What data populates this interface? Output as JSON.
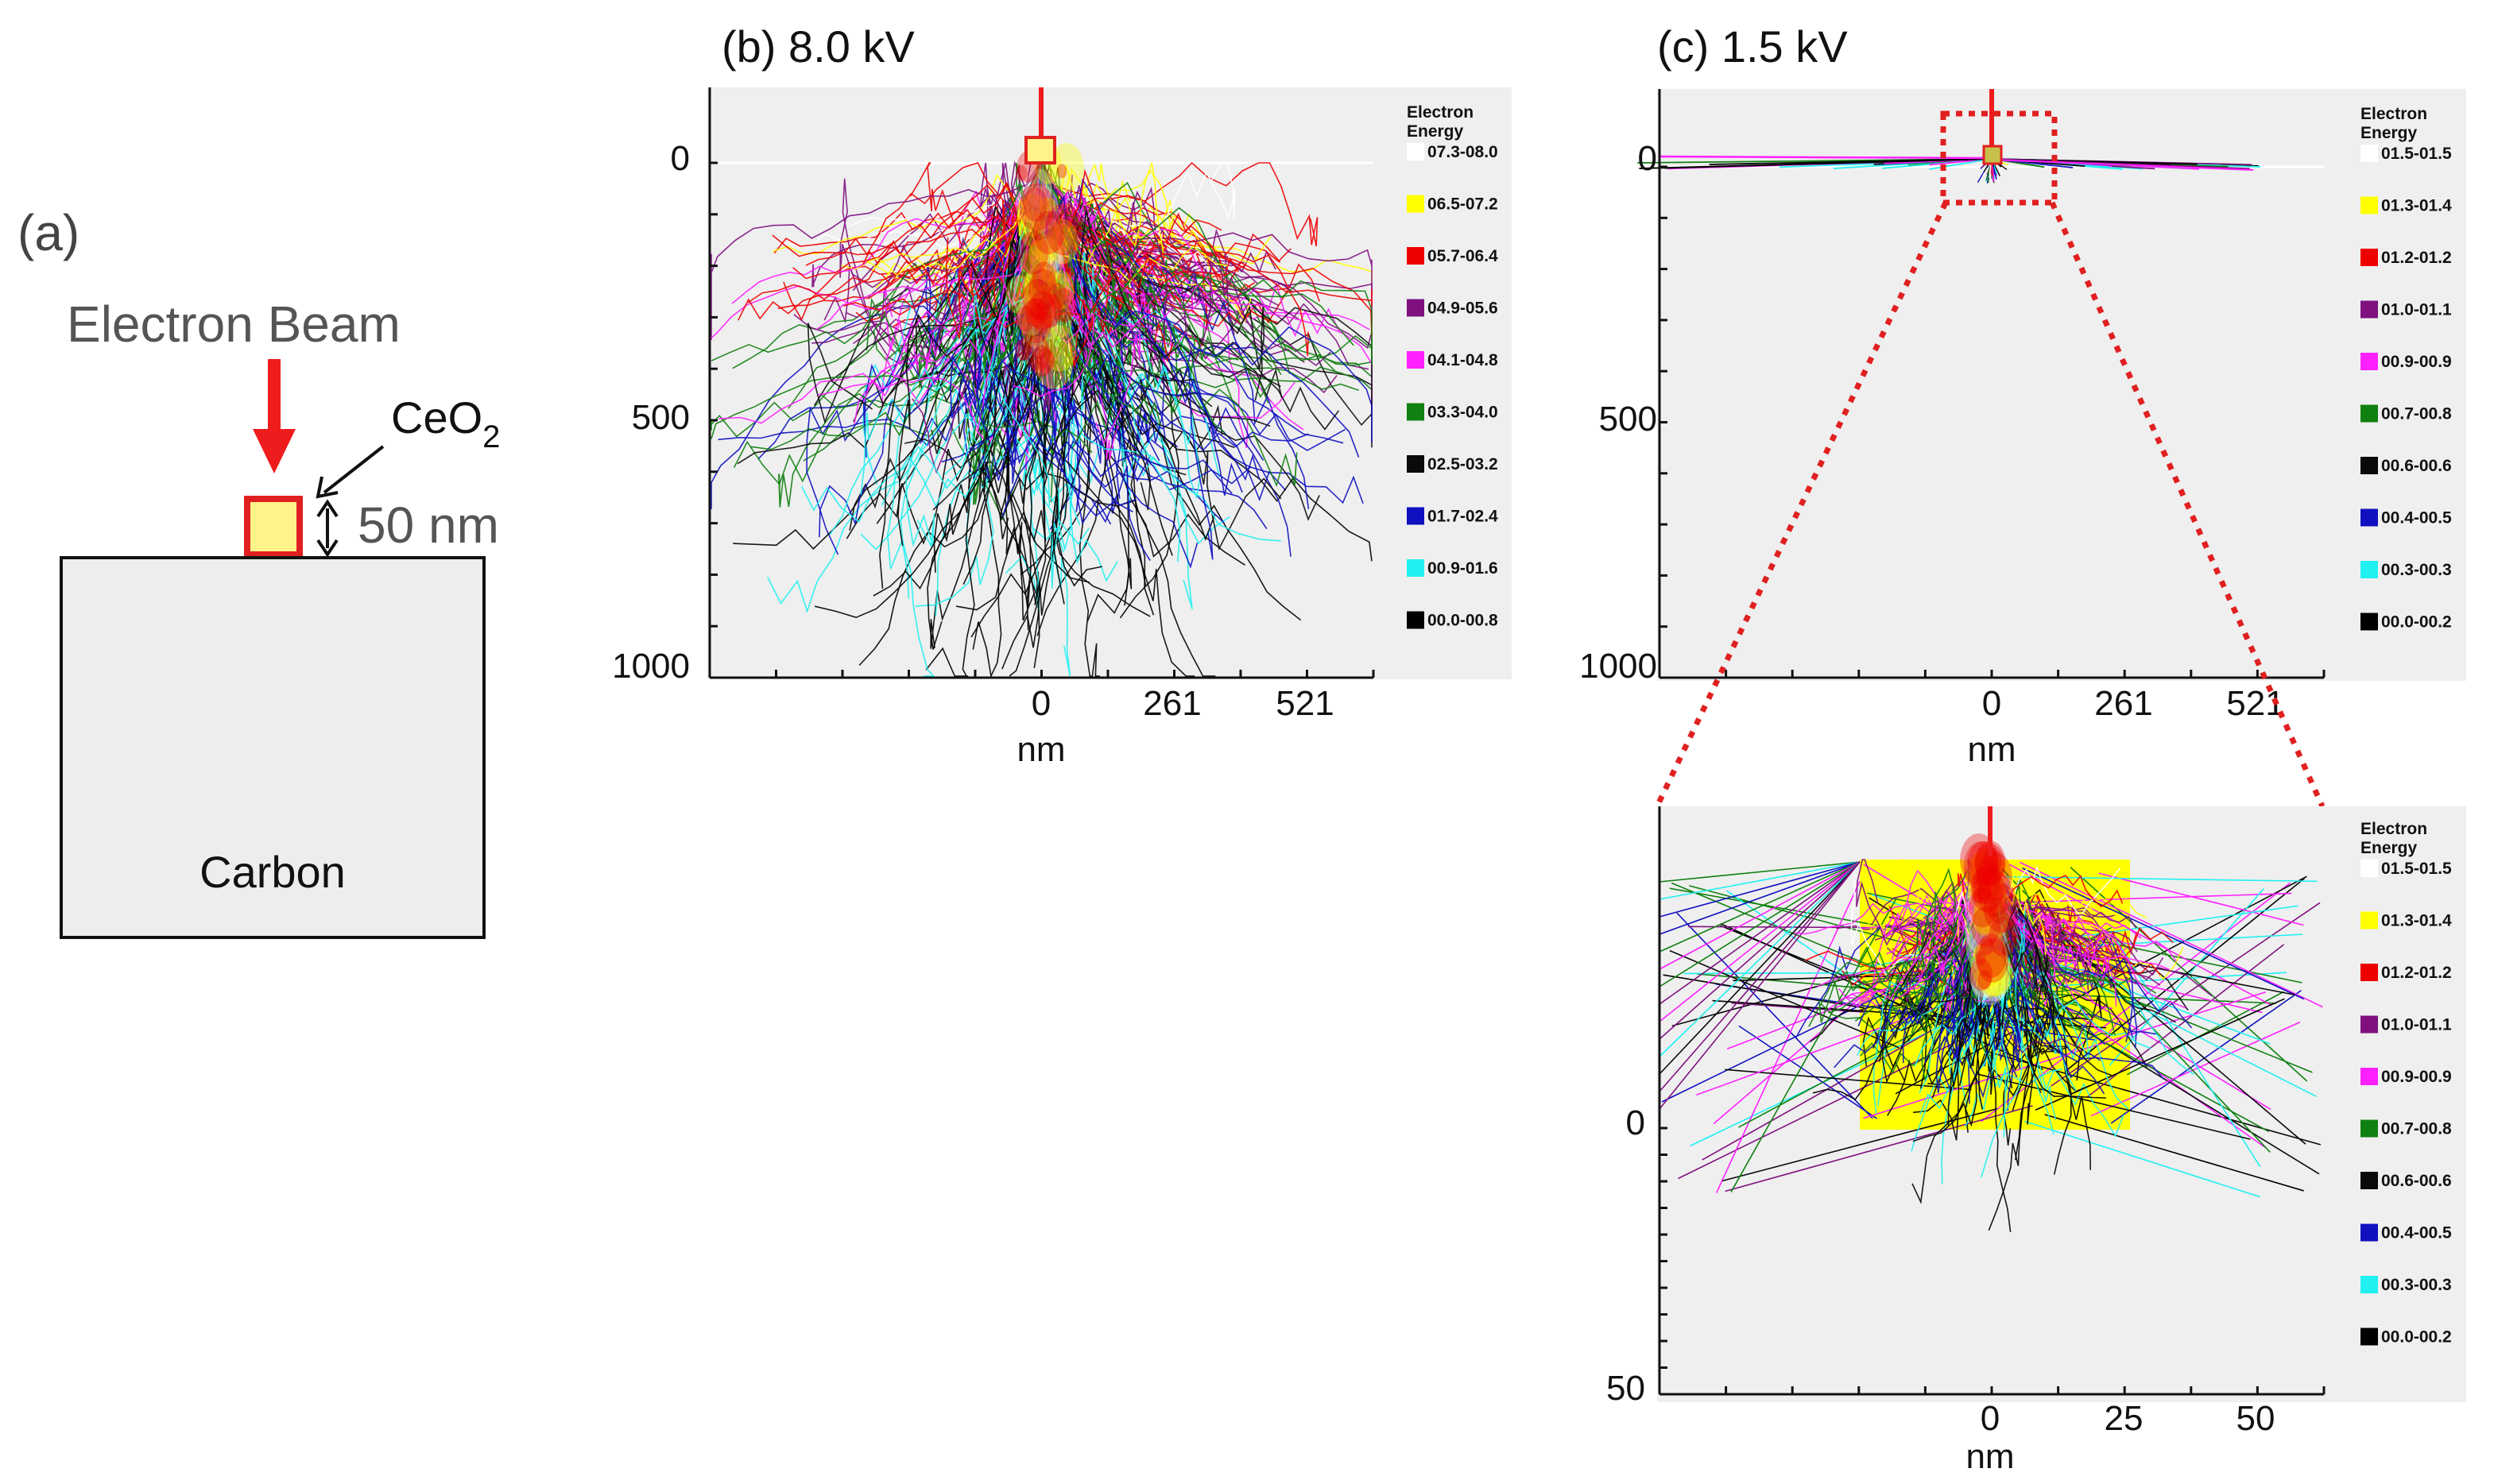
{
  "panel_a": {
    "label": "(a)",
    "beam_label": "Electron Beam",
    "particle_label": "CeO",
    "particle_subscript": "2",
    "size_label": "50 nm",
    "substrate_label": "Carbon",
    "colors": {
      "beam": "#ee1c1c",
      "particle_fill": "#fff38a",
      "particle_border": "#e02020",
      "substrate": "#ededed"
    }
  },
  "panel_b": {
    "title": "(b) 8.0 kV",
    "y_ticks": [
      "0",
      "500",
      "1000"
    ],
    "x_ticks": [
      "0",
      "261",
      "521"
    ],
    "x_unit": "nm",
    "legend_title_1": "Electron",
    "legend_title_2": "Energy",
    "legend": [
      {
        "range": "07.3-08.0",
        "color": "#ffffff"
      },
      {
        "range": "06.5-07.2",
        "color": "#ffff00"
      },
      {
        "range": "05.7-06.4",
        "color": "#ee0000"
      },
      {
        "range": "04.9-05.6",
        "color": "#7f107f"
      },
      {
        "range": "04.1-04.8",
        "color": "#ff20ff"
      },
      {
        "range": "03.3-04.0",
        "color": "#108010"
      },
      {
        "range": "02.5-03.2",
        "color": "#0a0a0a"
      },
      {
        "range": "01.7-02.4",
        "color": "#1010c0"
      },
      {
        "range": "00.9-01.6",
        "color": "#20f0f0"
      },
      {
        "range": "00.0-00.8",
        "color": "#000000"
      }
    ]
  },
  "panel_c": {
    "title": "(c) 1.5 kV",
    "y_ticks": [
      "0",
      "500",
      "1000"
    ],
    "x_ticks": [
      "0",
      "261",
      "521"
    ],
    "x_unit": "nm",
    "legend_title_1": "Electron",
    "legend_title_2": "Energy",
    "legend": [
      {
        "range": "01.5-01.5",
        "color": "#ffffff"
      },
      {
        "range": "01.3-01.4",
        "color": "#ffff00"
      },
      {
        "range": "01.2-01.2",
        "color": "#ee0000"
      },
      {
        "range": "01.0-01.1",
        "color": "#7f107f"
      },
      {
        "range": "00.9-00.9",
        "color": "#ff20ff"
      },
      {
        "range": "00.7-00.8",
        "color": "#108010"
      },
      {
        "range": "00.6-00.6",
        "color": "#0a0a0a"
      },
      {
        "range": "00.4-00.5",
        "color": "#1010c0"
      },
      {
        "range": "00.3-00.3",
        "color": "#20f0f0"
      },
      {
        "range": "00.0-00.2",
        "color": "#000000"
      }
    ]
  },
  "panel_c_zoom": {
    "y_ticks": [
      "0",
      "50"
    ],
    "x_ticks": [
      "0",
      "25",
      "50"
    ],
    "x_unit": "nm",
    "legend_title_1": "Electron",
    "legend_title_2": "Energy",
    "legend": [
      {
        "range": "01.5-01.5",
        "color": "#ffffff"
      },
      {
        "range": "01.3-01.4",
        "color": "#ffff00"
      },
      {
        "range": "01.2-01.2",
        "color": "#ee0000"
      },
      {
        "range": "01.0-01.1",
        "color": "#7f107f"
      },
      {
        "range": "00.9-00.9",
        "color": "#ff20ff"
      },
      {
        "range": "00.7-00.8",
        "color": "#108010"
      },
      {
        "range": "00.6-00.6",
        "color": "#0a0a0a"
      },
      {
        "range": "00.4-00.5",
        "color": "#1010c0"
      },
      {
        "range": "00.3-00.3",
        "color": "#20f0f0"
      },
      {
        "range": "00.0-00.2",
        "color": "#000000"
      }
    ]
  }
}
